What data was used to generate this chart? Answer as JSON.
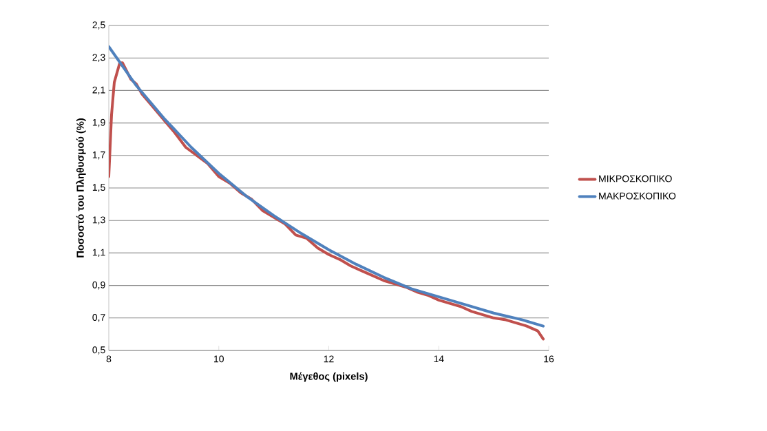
{
  "chart_data": {
    "type": "line",
    "xlabel": "Μέγεθος (pixels)",
    "ylabel": "Ποσοστό του Πληθυσμού (%)",
    "xlim": [
      8,
      16
    ],
    "xticks": [
      8,
      10,
      12,
      14,
      16
    ],
    "ylim": [
      0.5,
      2.5
    ],
    "yticks": [
      {
        "value": 0.5,
        "label": "0,5"
      },
      {
        "value": 0.7,
        "label": "0,7"
      },
      {
        "value": 0.9,
        "label": "0,9"
      },
      {
        "value": 1.1,
        "label": "1,1"
      },
      {
        "value": 1.3,
        "label": "1,3"
      },
      {
        "value": 1.5,
        "label": "1,5"
      },
      {
        "value": 1.7,
        "label": "1,7"
      },
      {
        "value": 1.9,
        "label": "1,9"
      },
      {
        "value": 2.1,
        "label": "2,1"
      },
      {
        "value": 2.3,
        "label": "2,3"
      },
      {
        "value": 2.5,
        "label": "2,5"
      }
    ],
    "grid": "y",
    "legend": "right",
    "marker": "none",
    "line_style": "solid",
    "series": [
      {
        "name": "ΜΙΚΡΟΣΚΟΠΙΚΟ",
        "color": "#c0504d",
        "x": [
          8.0,
          8.05,
          8.1,
          8.2,
          8.25,
          8.4,
          8.5,
          8.6,
          8.8,
          9.0,
          9.2,
          9.4,
          9.6,
          9.8,
          10.0,
          10.2,
          10.4,
          10.6,
          10.8,
          11.0,
          11.2,
          11.4,
          11.6,
          11.8,
          12.0,
          12.2,
          12.4,
          12.6,
          12.8,
          13.0,
          13.2,
          13.4,
          13.6,
          13.8,
          14.0,
          14.2,
          14.4,
          14.6,
          14.8,
          15.0,
          15.2,
          15.4,
          15.6,
          15.8,
          15.9
        ],
        "values": [
          1.57,
          1.95,
          2.15,
          2.27,
          2.27,
          2.17,
          2.14,
          2.08,
          2.0,
          1.92,
          1.84,
          1.75,
          1.7,
          1.65,
          1.57,
          1.53,
          1.47,
          1.43,
          1.36,
          1.32,
          1.28,
          1.21,
          1.19,
          1.13,
          1.09,
          1.06,
          1.02,
          0.99,
          0.96,
          0.93,
          0.91,
          0.89,
          0.86,
          0.84,
          0.81,
          0.79,
          0.77,
          0.74,
          0.72,
          0.7,
          0.69,
          0.67,
          0.65,
          0.62,
          0.57
        ]
      },
      {
        "name": "ΜΑΚΡΟΣΚΟΠΙΚΟ",
        "color": "#4f81bd",
        "x": [
          8.0,
          8.5,
          9.0,
          9.5,
          10.0,
          10.5,
          11.0,
          11.5,
          12.0,
          12.5,
          13.0,
          13.5,
          14.0,
          14.5,
          15.0,
          15.5,
          15.9
        ],
        "values": [
          2.37,
          2.13,
          1.93,
          1.75,
          1.59,
          1.45,
          1.33,
          1.22,
          1.12,
          1.03,
          0.95,
          0.88,
          0.83,
          0.78,
          0.73,
          0.69,
          0.65
        ]
      }
    ]
  }
}
